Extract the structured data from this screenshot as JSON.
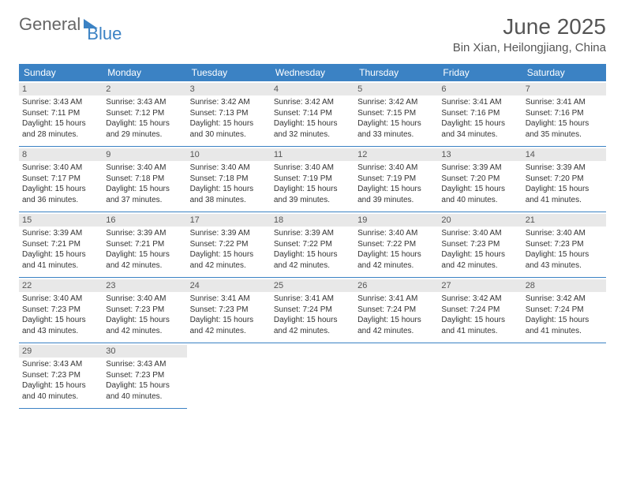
{
  "logo": {
    "part1": "General",
    "part2": "Blue"
  },
  "title": "June 2025",
  "location": "Bin Xian, Heilongjiang, China",
  "colors": {
    "header_bg": "#3b82c4",
    "header_text": "#ffffff",
    "daynum_bg": "#e8e8e8",
    "text": "#333333",
    "border": "#3b82c4"
  },
  "weekdays": [
    "Sunday",
    "Monday",
    "Tuesday",
    "Wednesday",
    "Thursday",
    "Friday",
    "Saturday"
  ],
  "days": [
    {
      "n": "1",
      "sunrise": "Sunrise: 3:43 AM",
      "sunset": "Sunset: 7:11 PM",
      "daylight": "Daylight: 15 hours and 28 minutes."
    },
    {
      "n": "2",
      "sunrise": "Sunrise: 3:43 AM",
      "sunset": "Sunset: 7:12 PM",
      "daylight": "Daylight: 15 hours and 29 minutes."
    },
    {
      "n": "3",
      "sunrise": "Sunrise: 3:42 AM",
      "sunset": "Sunset: 7:13 PM",
      "daylight": "Daylight: 15 hours and 30 minutes."
    },
    {
      "n": "4",
      "sunrise": "Sunrise: 3:42 AM",
      "sunset": "Sunset: 7:14 PM",
      "daylight": "Daylight: 15 hours and 32 minutes."
    },
    {
      "n": "5",
      "sunrise": "Sunrise: 3:42 AM",
      "sunset": "Sunset: 7:15 PM",
      "daylight": "Daylight: 15 hours and 33 minutes."
    },
    {
      "n": "6",
      "sunrise": "Sunrise: 3:41 AM",
      "sunset": "Sunset: 7:16 PM",
      "daylight": "Daylight: 15 hours and 34 minutes."
    },
    {
      "n": "7",
      "sunrise": "Sunrise: 3:41 AM",
      "sunset": "Sunset: 7:16 PM",
      "daylight": "Daylight: 15 hours and 35 minutes."
    },
    {
      "n": "8",
      "sunrise": "Sunrise: 3:40 AM",
      "sunset": "Sunset: 7:17 PM",
      "daylight": "Daylight: 15 hours and 36 minutes."
    },
    {
      "n": "9",
      "sunrise": "Sunrise: 3:40 AM",
      "sunset": "Sunset: 7:18 PM",
      "daylight": "Daylight: 15 hours and 37 minutes."
    },
    {
      "n": "10",
      "sunrise": "Sunrise: 3:40 AM",
      "sunset": "Sunset: 7:18 PM",
      "daylight": "Daylight: 15 hours and 38 minutes."
    },
    {
      "n": "11",
      "sunrise": "Sunrise: 3:40 AM",
      "sunset": "Sunset: 7:19 PM",
      "daylight": "Daylight: 15 hours and 39 minutes."
    },
    {
      "n": "12",
      "sunrise": "Sunrise: 3:40 AM",
      "sunset": "Sunset: 7:19 PM",
      "daylight": "Daylight: 15 hours and 39 minutes."
    },
    {
      "n": "13",
      "sunrise": "Sunrise: 3:39 AM",
      "sunset": "Sunset: 7:20 PM",
      "daylight": "Daylight: 15 hours and 40 minutes."
    },
    {
      "n": "14",
      "sunrise": "Sunrise: 3:39 AM",
      "sunset": "Sunset: 7:20 PM",
      "daylight": "Daylight: 15 hours and 41 minutes."
    },
    {
      "n": "15",
      "sunrise": "Sunrise: 3:39 AM",
      "sunset": "Sunset: 7:21 PM",
      "daylight": "Daylight: 15 hours and 41 minutes."
    },
    {
      "n": "16",
      "sunrise": "Sunrise: 3:39 AM",
      "sunset": "Sunset: 7:21 PM",
      "daylight": "Daylight: 15 hours and 42 minutes."
    },
    {
      "n": "17",
      "sunrise": "Sunrise: 3:39 AM",
      "sunset": "Sunset: 7:22 PM",
      "daylight": "Daylight: 15 hours and 42 minutes."
    },
    {
      "n": "18",
      "sunrise": "Sunrise: 3:39 AM",
      "sunset": "Sunset: 7:22 PM",
      "daylight": "Daylight: 15 hours and 42 minutes."
    },
    {
      "n": "19",
      "sunrise": "Sunrise: 3:40 AM",
      "sunset": "Sunset: 7:22 PM",
      "daylight": "Daylight: 15 hours and 42 minutes."
    },
    {
      "n": "20",
      "sunrise": "Sunrise: 3:40 AM",
      "sunset": "Sunset: 7:23 PM",
      "daylight": "Daylight: 15 hours and 42 minutes."
    },
    {
      "n": "21",
      "sunrise": "Sunrise: 3:40 AM",
      "sunset": "Sunset: 7:23 PM",
      "daylight": "Daylight: 15 hours and 43 minutes."
    },
    {
      "n": "22",
      "sunrise": "Sunrise: 3:40 AM",
      "sunset": "Sunset: 7:23 PM",
      "daylight": "Daylight: 15 hours and 43 minutes."
    },
    {
      "n": "23",
      "sunrise": "Sunrise: 3:40 AM",
      "sunset": "Sunset: 7:23 PM",
      "daylight": "Daylight: 15 hours and 42 minutes."
    },
    {
      "n": "24",
      "sunrise": "Sunrise: 3:41 AM",
      "sunset": "Sunset: 7:23 PM",
      "daylight": "Daylight: 15 hours and 42 minutes."
    },
    {
      "n": "25",
      "sunrise": "Sunrise: 3:41 AM",
      "sunset": "Sunset: 7:24 PM",
      "daylight": "Daylight: 15 hours and 42 minutes."
    },
    {
      "n": "26",
      "sunrise": "Sunrise: 3:41 AM",
      "sunset": "Sunset: 7:24 PM",
      "daylight": "Daylight: 15 hours and 42 minutes."
    },
    {
      "n": "27",
      "sunrise": "Sunrise: 3:42 AM",
      "sunset": "Sunset: 7:24 PM",
      "daylight": "Daylight: 15 hours and 41 minutes."
    },
    {
      "n": "28",
      "sunrise": "Sunrise: 3:42 AM",
      "sunset": "Sunset: 7:24 PM",
      "daylight": "Daylight: 15 hours and 41 minutes."
    },
    {
      "n": "29",
      "sunrise": "Sunrise: 3:43 AM",
      "sunset": "Sunset: 7:23 PM",
      "daylight": "Daylight: 15 hours and 40 minutes."
    },
    {
      "n": "30",
      "sunrise": "Sunrise: 3:43 AM",
      "sunset": "Sunset: 7:23 PM",
      "daylight": "Daylight: 15 hours and 40 minutes."
    }
  ]
}
